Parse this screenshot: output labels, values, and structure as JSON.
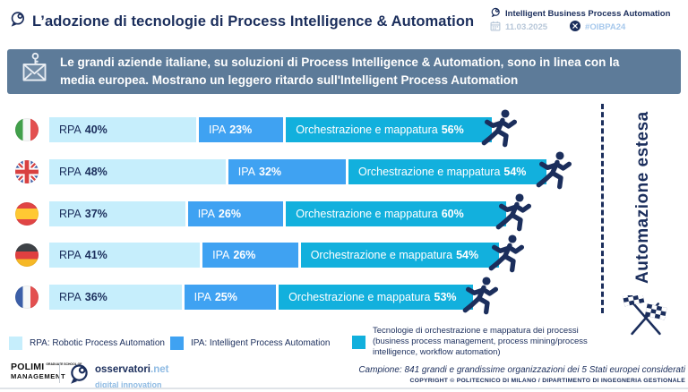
{
  "header": {
    "title": "L’adozione di tecnologie di Process Intelligence & Automation",
    "event_name": "Intelligent Business Process Automation",
    "date": "11.03.2025",
    "hashtag": "#OIBPA24"
  },
  "banner": {
    "text": "Le grandi aziende italiane, su soluzioni di Process Intelligence & Automation, sono in linea con la media europea. Mostrano un leggero ritardo sull'Intelligent Process Automation"
  },
  "chart_data": {
    "type": "bar",
    "orientation": "horizontal",
    "unit": "%",
    "annotation": "Automazione estesa",
    "categories": [
      "Italia",
      "Regno Unito",
      "Spagna",
      "Germania",
      "Francia"
    ],
    "flag_codes": [
      "it",
      "gb",
      "es",
      "de",
      "fr"
    ],
    "series": [
      {
        "name": "RPA",
        "color": "#c6eefc",
        "text_color": "#1b2e5c",
        "values": [
          40,
          48,
          37,
          41,
          36
        ]
      },
      {
        "name": "IPA",
        "color": "#3fa2f2",
        "text_color": "#ffffff",
        "values": [
          23,
          32,
          26,
          26,
          25
        ]
      },
      {
        "name": "Orchestrazione e mappatura",
        "color": "#12b0dd",
        "text_color": "#ffffff",
        "values": [
          56,
          54,
          60,
          54,
          53
        ]
      }
    ]
  },
  "legend": {
    "items": [
      {
        "color": "#c6eefc",
        "label": "RPA: Robotic Process Automation"
      },
      {
        "color": "#3fa2f2",
        "label": "IPA: Intelligent Process Automation"
      },
      {
        "color": "#12b0dd",
        "label": "Tecnologie di orchestrazione e mappatura dei processi (business process management, process mining/process intelligence, workflow automation)"
      }
    ]
  },
  "footer": {
    "polimi_name": "POLIMI",
    "polimi_small": "GRADUATE SCHOOL OF",
    "polimi_bottom": "MANAGEMENT",
    "osservatori_name": "osservatori",
    "osservatori_tld": ".net",
    "osservatori_sub": "digital innovation",
    "sample_note": "Campione: 841 grandi e grandissime organizzazioni dei 5 Stati europei considerati",
    "copyright": "COPYRIGHT © POLITECNICO DI MILANO / DIPARTIMENTO DI INGEGNERIA GESTIONALE"
  },
  "colors": {
    "navy": "#1b2e5c",
    "banner_bg": "#5d7b99",
    "rpa": "#c6eefc",
    "ipa": "#3fa2f2",
    "orchestration": "#12b0dd"
  }
}
